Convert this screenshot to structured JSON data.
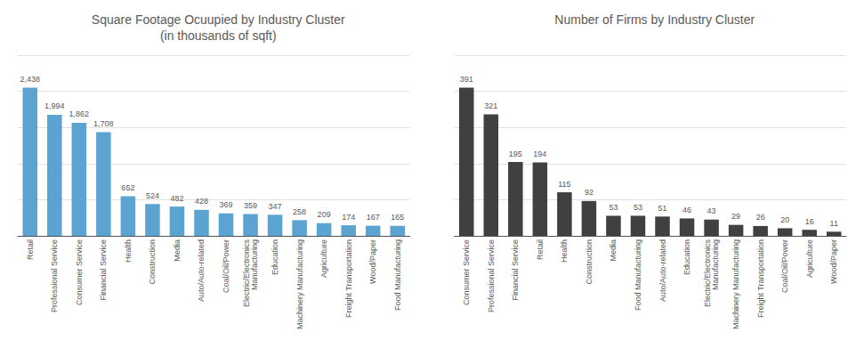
{
  "chart_data": [
    {
      "type": "bar",
      "title": "Square Footage Ocuupied by Industry Cluster\n(in thousands of sqft)",
      "categories": [
        "Retail",
        "Professional Service",
        "Consumer Service",
        "Financial Service",
        "Health",
        "Construction",
        "Media",
        "Auto/Auto-related",
        "Coal/Oil/Power",
        "Electric/Electronics\nManufacturing",
        "Education",
        "Machinery Manufacturing",
        "Agriculture",
        "Freight Transportation",
        "Wood/Paper",
        "Food Manufacturing"
      ],
      "values": [
        2438,
        1994,
        1862,
        1708,
        652,
        524,
        482,
        428,
        369,
        359,
        347,
        258,
        209,
        174,
        167,
        165
      ],
      "value_labels": [
        "2,438",
        "1,994",
        "1,862",
        "1,708",
        "652",
        "524",
        "482",
        "428",
        "369",
        "359",
        "347",
        "258",
        "209",
        "174",
        "167",
        "165"
      ],
      "color": "#5BA3D0",
      "ylim": [
        0,
        2974.36
      ],
      "yticks": [
        0,
        594.872,
        1189.744,
        1784.616,
        2379.488,
        2974.36
      ],
      "grid": true,
      "tick_labels": "x",
      "data_labels": true
    },
    {
      "type": "bar",
      "title": "Number of Firms by Industry Cluster",
      "categories": [
        "Consumer Service",
        "Professional Service",
        "Financial Service",
        "Retail",
        "Health",
        "Construction",
        "Media",
        "Food Manufacturing",
        "Auto/Auto-related",
        "Education",
        "Electric/Electronics\nManufacturing",
        "Machinery Manufacturing",
        "Freight Transportation",
        "Coal/Oil/Power",
        "Agriculture",
        "Wood/Paper"
      ],
      "values": [
        391,
        321,
        195,
        194,
        115,
        92,
        53,
        53,
        51,
        46,
        43,
        29,
        26,
        20,
        16,
        11
      ],
      "color": "#404040",
      "ylim": [
        0,
        477.02
      ],
      "yticks": [
        0,
        95.404,
        190.808,
        286.212,
        381.616,
        477.02
      ],
      "grid": true,
      "tick_labels": "x",
      "data_labels": true
    }
  ]
}
